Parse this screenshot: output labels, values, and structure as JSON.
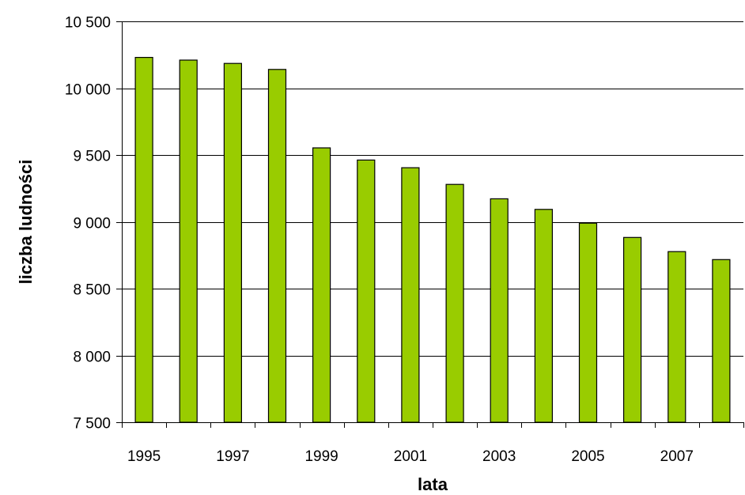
{
  "chart_data": {
    "type": "bar",
    "xlabel": "lata",
    "ylabel": "liczba ludności",
    "categories": [
      "1995",
      "1996",
      "1997",
      "1998",
      "1999",
      "2000",
      "2001",
      "2002",
      "2003",
      "2004",
      "2005",
      "2006",
      "2007",
      "2008"
    ],
    "x_tick_labels": [
      "1995",
      "1997",
      "1999",
      "2001",
      "2003",
      "2005",
      "2007"
    ],
    "values": [
      10230,
      10210,
      10185,
      10140,
      9553,
      9462,
      9405,
      9280,
      9172,
      9093,
      8990,
      8883,
      8777,
      8717
    ],
    "ylim": [
      7500,
      10500
    ],
    "y_ticks": [
      7500,
      8000,
      8500,
      9000,
      9500,
      10000,
      10500
    ],
    "y_tick_labels": [
      "7 500",
      "8 000",
      "8 500",
      "9 000",
      "9 500",
      "10 000",
      "10 500"
    ],
    "grid": true,
    "legend": false,
    "bar_color": "#99CC00"
  }
}
